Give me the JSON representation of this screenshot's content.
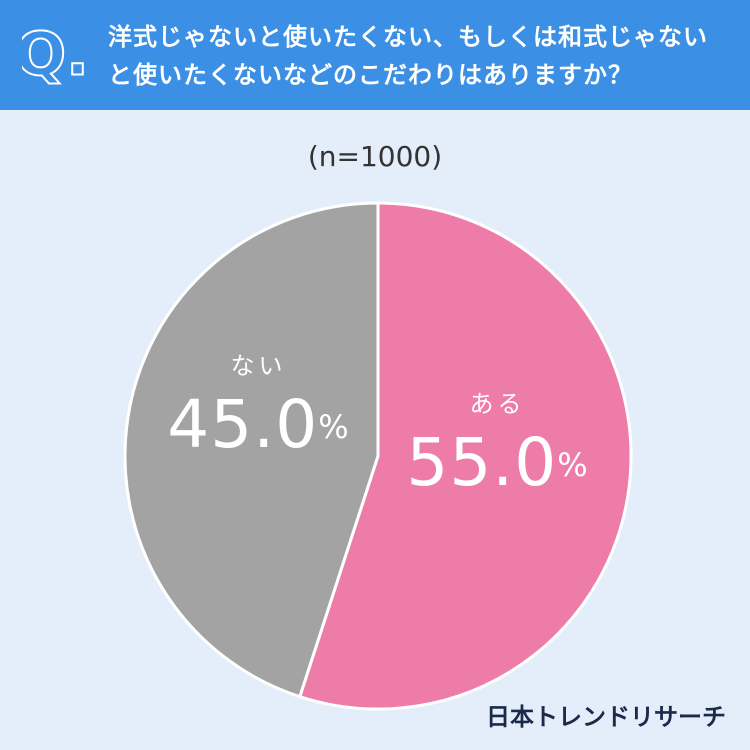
{
  "chart_data": {
    "type": "pie",
    "question_label": "Q.",
    "title": "洋式じゃないと使いたくない、もしくは和式じゃないと使いたくないなどのこだわりはありますか？",
    "subtitle": "(n=1000)",
    "categories": [
      "ある",
      "ない"
    ],
    "values": [
      55,
      45
    ],
    "value_labels": [
      "55.0%",
      "45.0%"
    ],
    "colors": [
      "#ee7ca8",
      "#a3a3a3"
    ],
    "source": "日本トレンドリサーチ"
  }
}
